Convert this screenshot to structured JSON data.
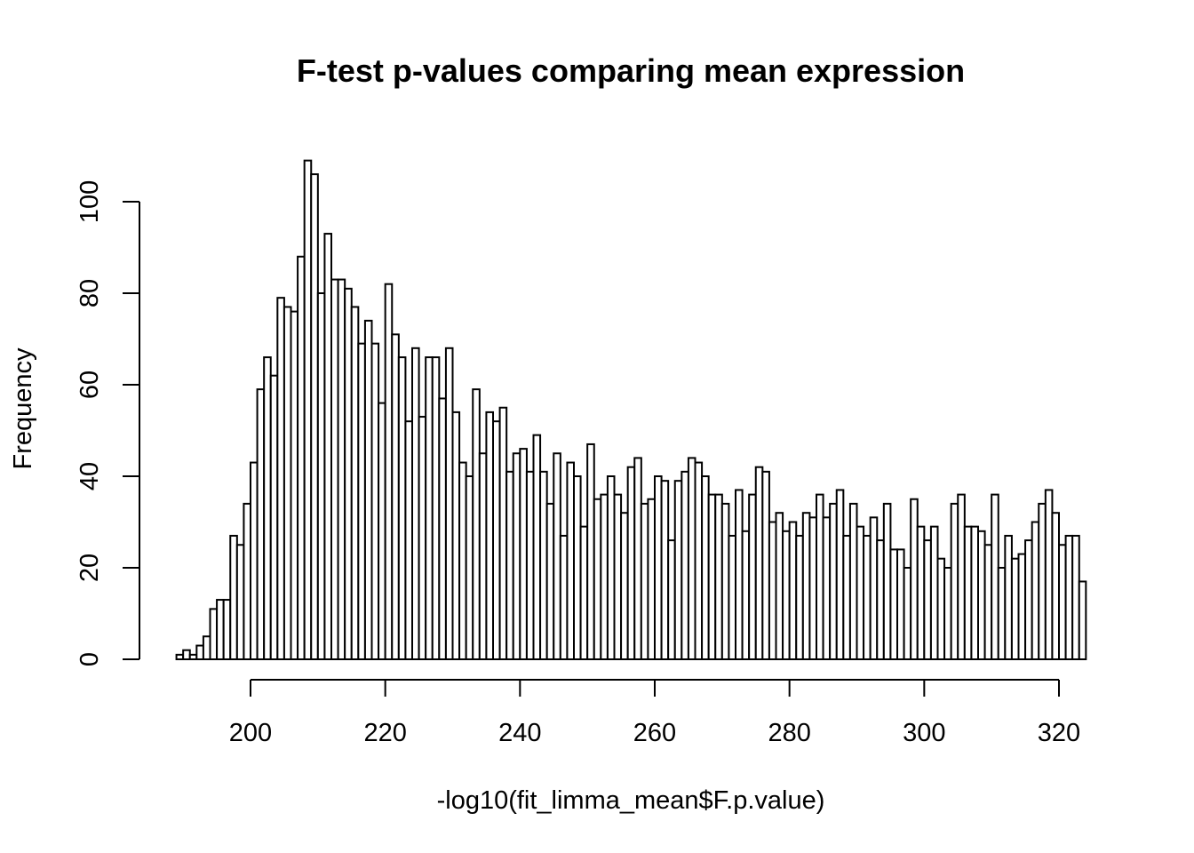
{
  "chart_data": {
    "type": "bar",
    "title": "F-test p-values comparing mean expression",
    "xlabel": "-log10(fit_limma_mean$F.p.value)",
    "ylabel": "Frequency",
    "x_bin_start": 189,
    "x_bin_end": 324,
    "bin_width": 1,
    "values": [
      1,
      2,
      1,
      3,
      5,
      11,
      13,
      13,
      27,
      25,
      34,
      43,
      59,
      66,
      62,
      79,
      77,
      76,
      88,
      109,
      106,
      80,
      93,
      83,
      83,
      81,
      77,
      69,
      74,
      69,
      56,
      82,
      71,
      66,
      52,
      68,
      53,
      66,
      66,
      57,
      68,
      54,
      43,
      40,
      59,
      45,
      54,
      52,
      55,
      41,
      45,
      46,
      41,
      49,
      41,
      34,
      45,
      27,
      43,
      40,
      29,
      47,
      35,
      36,
      40,
      36,
      32,
      42,
      44,
      34,
      35,
      40,
      39,
      26,
      39,
      41,
      44,
      43,
      40,
      36,
      36,
      34,
      27,
      37,
      28,
      36,
      42,
      41,
      30,
      32,
      28,
      30,
      27,
      32,
      31,
      36,
      31,
      34,
      37,
      27,
      34,
      29,
      27,
      31,
      26,
      34,
      24,
      24,
      20,
      35,
      29,
      26,
      29,
      22,
      20,
      34,
      36,
      29,
      29,
      28,
      25,
      36,
      20,
      27,
      22,
      23,
      26,
      30,
      34,
      37,
      32,
      25,
      27,
      27,
      17
    ],
    "xlim": [
      189,
      324
    ],
    "ylim": [
      0,
      109
    ],
    "x_ticks": [
      200,
      220,
      240,
      260,
      280,
      300,
      320
    ],
    "y_ticks": [
      0,
      20,
      40,
      60,
      80,
      100
    ],
    "bar_fill": "#ffffff",
    "bar_stroke": "#000000",
    "grid": false
  }
}
